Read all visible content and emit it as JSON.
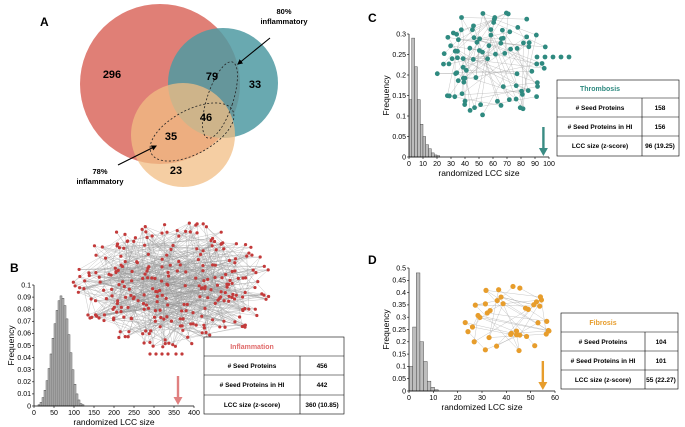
{
  "panels": {
    "A": {
      "label": "A",
      "venn": {
        "only_inflammation": "296",
        "only_thrombosis": "33",
        "only_fibrosis": "23",
        "infl_thromb": "79",
        "all_three": "46",
        "infl_fibro": "35"
      },
      "annot_top_pct": "80%",
      "annot_top_word": "inflammatory",
      "annot_bottom_pct": "78%",
      "annot_bottom_word": "inflammatory",
      "colors": {
        "inflammation": "#e07f76",
        "thrombosis": "#4f9aa2",
        "fibrosis": "#f1be84"
      }
    },
    "B": {
      "label": "B",
      "table": {
        "title": "Inflammation",
        "rows": [
          {
            "label": "# Seed Proteins",
            "value": "456"
          },
          {
            "label": "# Seed Proteins in HI",
            "value": "442"
          },
          {
            "label": "LCC size (z-score)",
            "value": "360 (10.85)"
          }
        ]
      },
      "node_color": "#c33a3a",
      "arrow_color": "#e08080"
    },
    "C": {
      "label": "C",
      "table": {
        "title": "Thrombosis",
        "rows": [
          {
            "label": "# Seed Proteins",
            "value": "158"
          },
          {
            "label": "# Seed Proteins in HI",
            "value": "156"
          },
          {
            "label": "LCC size (z-score)",
            "value": "96 (19.25)"
          }
        ]
      },
      "node_color": "#2f8a80",
      "arrow_color": "#3a8c84"
    },
    "D": {
      "label": "D",
      "table": {
        "title": "Fibrosis",
        "rows": [
          {
            "label": "# Seed Proteins",
            "value": "104"
          },
          {
            "label": "# Seed Proteins in HI",
            "value": "101"
          },
          {
            "label": "LCC size (z-score)",
            "value": "55 (22.27)"
          }
        ]
      },
      "node_color": "#e79d2c",
      "arrow_color": "#e79d2c"
    }
  },
  "chart_data": [
    {
      "type": "bar",
      "panel": "B",
      "xlabel": "randomized LCC size",
      "ylabel": "Frequency",
      "xlim": [
        0,
        400
      ],
      "ylim": [
        0,
        0.1
      ],
      "xticks": [
        "0",
        "50",
        "100",
        "150",
        "200",
        "250",
        "300",
        "350",
        "400"
      ],
      "yticks": [
        "0",
        "0.01",
        "0.02",
        "0.03",
        "0.04",
        "0.05",
        "0.06",
        "0.07",
        "0.08",
        "0.09",
        "0.1"
      ],
      "bin_width": 5,
      "bins_start": [
        10,
        15,
        20,
        25,
        30,
        35,
        40,
        45,
        50,
        55,
        60,
        65,
        70,
        75,
        80,
        85,
        90,
        95,
        100,
        105,
        110,
        115,
        120
      ],
      "values": [
        0.001,
        0.003,
        0.007,
        0.013,
        0.021,
        0.031,
        0.043,
        0.056,
        0.068,
        0.079,
        0.087,
        0.091,
        0.089,
        0.083,
        0.072,
        0.059,
        0.044,
        0.03,
        0.018,
        0.01,
        0.005,
        0.002,
        0.001
      ],
      "marker_x": 360
    },
    {
      "type": "bar",
      "panel": "C",
      "xlabel": "randomized LCC size",
      "ylabel": "Frequency",
      "xlim": [
        0,
        100
      ],
      "ylim": [
        0,
        0.3
      ],
      "xticks": [
        "0",
        "10",
        "20",
        "30",
        "40",
        "50",
        "60",
        "70",
        "80",
        "90",
        "100"
      ],
      "yticks": [
        "0",
        "0.05",
        "0.1",
        "0.15",
        "0.2",
        "0.25",
        "0.3"
      ],
      "bin_width": 2,
      "bins_start": [
        0,
        2,
        4,
        6,
        8,
        10,
        12,
        14,
        16,
        18,
        20
      ],
      "values": [
        0.14,
        0.29,
        0.22,
        0.14,
        0.08,
        0.05,
        0.03,
        0.02,
        0.01,
        0.005,
        0.003
      ],
      "marker_x": 96
    },
    {
      "type": "bar",
      "panel": "D",
      "xlabel": "randomized LCC size",
      "ylabel": "Frequency",
      "xlim": [
        0,
        60
      ],
      "ylim": [
        0,
        0.5
      ],
      "xticks": [
        "0",
        "10",
        "20",
        "30",
        "40",
        "50",
        "60"
      ],
      "yticks": [
        "0",
        "0.05",
        "0.1",
        "0.15",
        "0.2",
        "0.25",
        "0.3",
        "0.35",
        "0.4",
        "0.45",
        "0.5"
      ],
      "bin_width": 1.5,
      "bins_start": [
        0,
        1.5,
        3,
        4.5,
        6,
        7.5,
        9,
        10.5
      ],
      "values": [
        0.1,
        0.26,
        0.48,
        0.2,
        0.12,
        0.04,
        0.015,
        0.005
      ],
      "marker_x": 55
    }
  ]
}
